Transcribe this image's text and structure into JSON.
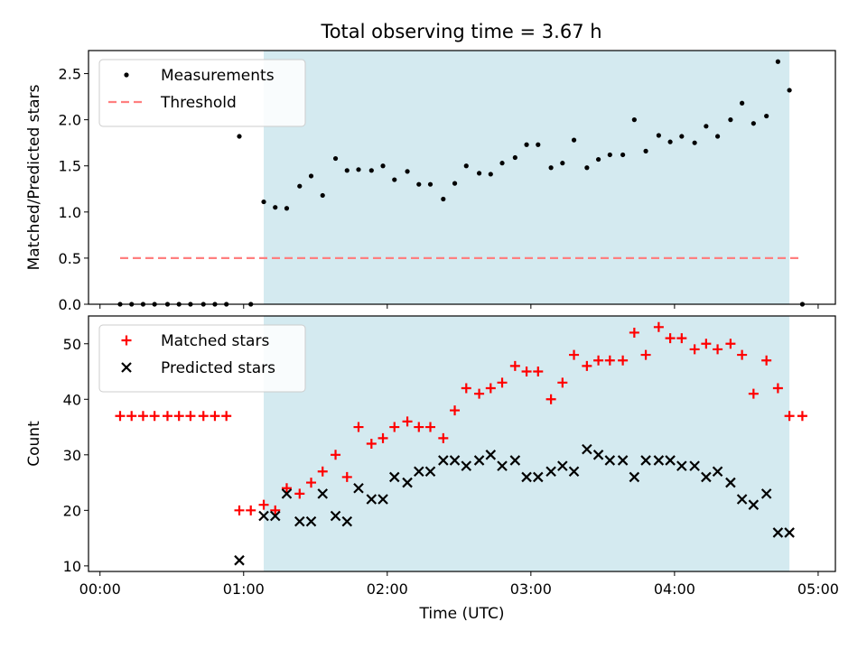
{
  "chart_data": [
    {
      "type": "scatter",
      "title": "Total observing time = 3.67 h",
      "xlabel": "",
      "ylabel": "Matched/Predicted stars",
      "xlim": [
        -0.08,
        5.12
      ],
      "ylim": [
        0,
        2.75
      ],
      "yticks": [
        0.0,
        0.5,
        1.0,
        1.5,
        2.0,
        2.5
      ],
      "ytick_labels": [
        "0.0",
        "0.5",
        "1.0",
        "1.5",
        "2.0",
        "2.5"
      ],
      "xticks": [
        0,
        1,
        2,
        3,
        4,
        5
      ],
      "shaded_span": [
        1.14,
        4.8
      ],
      "shade_color": "#d4eaf0",
      "legend": {
        "placement": "upper-left"
      },
      "series": [
        {
          "name": "Measurements",
          "kind": "scatter",
          "marker": "dot",
          "color": "#000000",
          "points": [
            [
              0.14,
              0.0
            ],
            [
              0.22,
              0.0
            ],
            [
              0.3,
              0.0
            ],
            [
              0.38,
              0.0
            ],
            [
              0.47,
              0.0
            ],
            [
              0.55,
              0.0
            ],
            [
              0.63,
              0.0
            ],
            [
              0.72,
              0.0
            ],
            [
              0.8,
              0.0
            ],
            [
              0.88,
              0.0
            ],
            [
              0.97,
              1.82
            ],
            [
              1.05,
              0.0
            ],
            [
              1.14,
              1.11
            ],
            [
              1.22,
              1.05
            ],
            [
              1.3,
              1.04
            ],
            [
              1.39,
              1.28
            ],
            [
              1.47,
              1.39
            ],
            [
              1.55,
              1.18
            ],
            [
              1.64,
              1.58
            ],
            [
              1.72,
              1.45
            ],
            [
              1.8,
              1.46
            ],
            [
              1.89,
              1.45
            ],
            [
              1.97,
              1.5
            ],
            [
              2.05,
              1.35
            ],
            [
              2.14,
              1.44
            ],
            [
              2.22,
              1.3
            ],
            [
              2.3,
              1.3
            ],
            [
              2.39,
              1.14
            ],
            [
              2.47,
              1.31
            ],
            [
              2.55,
              1.5
            ],
            [
              2.64,
              1.42
            ],
            [
              2.72,
              1.41
            ],
            [
              2.8,
              1.53
            ],
            [
              2.89,
              1.59
            ],
            [
              2.97,
              1.73
            ],
            [
              3.05,
              1.73
            ],
            [
              3.14,
              1.48
            ],
            [
              3.22,
              1.53
            ],
            [
              3.3,
              1.78
            ],
            [
              3.39,
              1.48
            ],
            [
              3.47,
              1.57
            ],
            [
              3.55,
              1.62
            ],
            [
              3.64,
              1.62
            ],
            [
              3.72,
              2.0
            ],
            [
              3.8,
              1.66
            ],
            [
              3.89,
              1.83
            ],
            [
              3.97,
              1.76
            ],
            [
              4.05,
              1.82
            ],
            [
              4.14,
              1.75
            ],
            [
              4.22,
              1.93
            ],
            [
              4.3,
              1.82
            ],
            [
              4.39,
              2.0
            ],
            [
              4.47,
              2.18
            ],
            [
              4.55,
              1.96
            ],
            [
              4.64,
              2.04
            ],
            [
              4.72,
              2.63
            ],
            [
              4.8,
              2.32
            ],
            [
              4.89,
              0.0
            ]
          ]
        },
        {
          "name": "Threshold",
          "kind": "line",
          "style": "dashed",
          "color": "#ff7f7f",
          "points": [
            [
              0.14,
              0.5
            ],
            [
              4.89,
              0.5
            ]
          ]
        }
      ]
    },
    {
      "type": "scatter",
      "title": "",
      "xlabel": "Time (UTC)",
      "ylabel": "Count",
      "xlim": [
        -0.08,
        5.12
      ],
      "ylim": [
        9,
        55
      ],
      "yticks": [
        10,
        20,
        30,
        40,
        50
      ],
      "ytick_labels": [
        "10",
        "20",
        "30",
        "40",
        "50"
      ],
      "xticks": [
        0,
        1,
        2,
        3,
        4,
        5
      ],
      "xtick_labels": [
        "00:00",
        "01:00",
        "02:00",
        "03:00",
        "04:00",
        "05:00"
      ],
      "shaded_span": [
        1.14,
        4.8
      ],
      "shade_color": "#d4eaf0",
      "legend": {
        "placement": "upper-left"
      },
      "series": [
        {
          "name": "Matched stars",
          "kind": "scatter",
          "marker": "plus",
          "color": "#ff0000",
          "points": [
            [
              0.14,
              37
            ],
            [
              0.22,
              37
            ],
            [
              0.3,
              37
            ],
            [
              0.38,
              37
            ],
            [
              0.47,
              37
            ],
            [
              0.55,
              37
            ],
            [
              0.63,
              37
            ],
            [
              0.72,
              37
            ],
            [
              0.8,
              37
            ],
            [
              0.88,
              37
            ],
            [
              0.97,
              20
            ],
            [
              1.05,
              20
            ],
            [
              1.14,
              21
            ],
            [
              1.22,
              20
            ],
            [
              1.3,
              24
            ],
            [
              1.39,
              23
            ],
            [
              1.47,
              25
            ],
            [
              1.55,
              27
            ],
            [
              1.64,
              30
            ],
            [
              1.72,
              26
            ],
            [
              1.8,
              35
            ],
            [
              1.89,
              32
            ],
            [
              1.97,
              33
            ],
            [
              2.05,
              35
            ],
            [
              2.14,
              36
            ],
            [
              2.22,
              35
            ],
            [
              2.3,
              35
            ],
            [
              2.39,
              33
            ],
            [
              2.47,
              38
            ],
            [
              2.55,
              42
            ],
            [
              2.64,
              41
            ],
            [
              2.72,
              42
            ],
            [
              2.8,
              43
            ],
            [
              2.89,
              46
            ],
            [
              2.97,
              45
            ],
            [
              3.05,
              45
            ],
            [
              3.14,
              40
            ],
            [
              3.22,
              43
            ],
            [
              3.3,
              48
            ],
            [
              3.39,
              46
            ],
            [
              3.47,
              47
            ],
            [
              3.55,
              47
            ],
            [
              3.64,
              47
            ],
            [
              3.72,
              52
            ],
            [
              3.8,
              48
            ],
            [
              3.89,
              53
            ],
            [
              3.97,
              51
            ],
            [
              4.05,
              51
            ],
            [
              4.14,
              49
            ],
            [
              4.22,
              50
            ],
            [
              4.3,
              49
            ],
            [
              4.39,
              50
            ],
            [
              4.47,
              48
            ],
            [
              4.55,
              41
            ],
            [
              4.64,
              47
            ],
            [
              4.72,
              42
            ],
            [
              4.8,
              37
            ],
            [
              4.89,
              37
            ]
          ]
        },
        {
          "name": "Predicted stars",
          "kind": "scatter",
          "marker": "x",
          "color": "#000000",
          "points": [
            [
              0.97,
              11
            ],
            [
              1.14,
              19
            ],
            [
              1.22,
              19
            ],
            [
              1.3,
              23
            ],
            [
              1.39,
              18
            ],
            [
              1.47,
              18
            ],
            [
              1.55,
              23
            ],
            [
              1.64,
              19
            ],
            [
              1.72,
              18
            ],
            [
              1.8,
              24
            ],
            [
              1.89,
              22
            ],
            [
              1.97,
              22
            ],
            [
              2.05,
              26
            ],
            [
              2.14,
              25
            ],
            [
              2.22,
              27
            ],
            [
              2.3,
              27
            ],
            [
              2.39,
              29
            ],
            [
              2.47,
              29
            ],
            [
              2.55,
              28
            ],
            [
              2.64,
              29
            ],
            [
              2.72,
              30
            ],
            [
              2.8,
              28
            ],
            [
              2.89,
              29
            ],
            [
              2.97,
              26
            ],
            [
              3.05,
              26
            ],
            [
              3.14,
              27
            ],
            [
              3.22,
              28
            ],
            [
              3.3,
              27
            ],
            [
              3.39,
              31
            ],
            [
              3.47,
              30
            ],
            [
              3.55,
              29
            ],
            [
              3.64,
              29
            ],
            [
              3.72,
              26
            ],
            [
              3.8,
              29
            ],
            [
              3.89,
              29
            ],
            [
              3.97,
              29
            ],
            [
              4.05,
              28
            ],
            [
              4.14,
              28
            ],
            [
              4.22,
              26
            ],
            [
              4.3,
              27
            ],
            [
              4.39,
              25
            ],
            [
              4.47,
              22
            ],
            [
              4.55,
              21
            ],
            [
              4.64,
              23
            ],
            [
              4.72,
              16
            ],
            [
              4.8,
              16
            ]
          ]
        }
      ]
    }
  ]
}
